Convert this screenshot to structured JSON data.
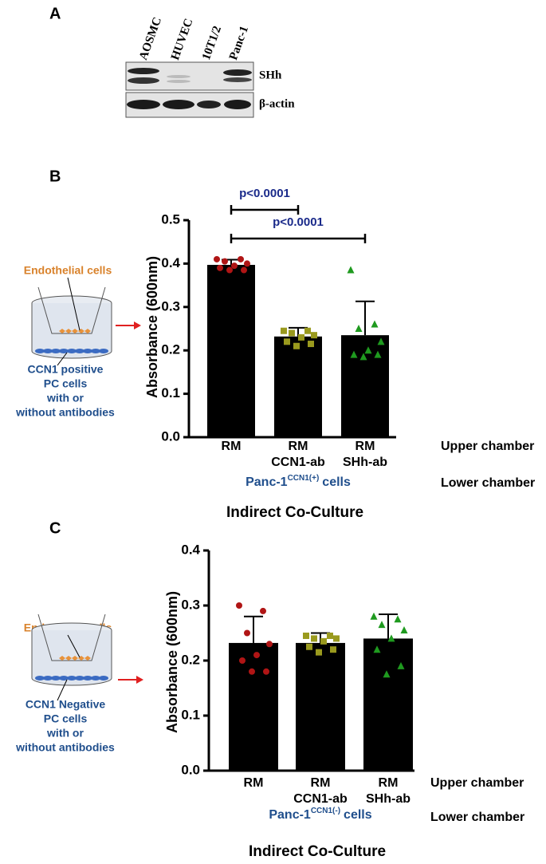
{
  "panel_a": {
    "label": "A",
    "lanes": [
      "AOSMC",
      "HUVEC",
      "10T1/2",
      "Panc-1"
    ],
    "bands": [
      "SHh",
      "β-actin"
    ]
  },
  "chart_data": [
    {
      "type": "bar",
      "panel": "B",
      "ylabel": "Absorbance (600nm)",
      "categories": [
        [
          "RM"
        ],
        [
          "RM",
          "CCN1-ab"
        ],
        [
          "RM",
          "SHh-ab"
        ]
      ],
      "values": [
        0.397,
        0.232,
        0.235
      ],
      "errors": [
        0.012,
        0.02,
        0.078
      ],
      "color": "#000000",
      "points": [
        {
          "color": "#b01515",
          "marker": "circle",
          "values": [
            0.41,
            0.41,
            0.405,
            0.4,
            0.395,
            0.39,
            0.385,
            0.385
          ]
        },
        {
          "color": "#9a9a1e",
          "marker": "square",
          "values": [
            0.245,
            0.245,
            0.24,
            0.235,
            0.23,
            0.22,
            0.215,
            0.21
          ]
        },
        {
          "color": "#1f9a1f",
          "marker": "triangle",
          "values": [
            0.385,
            0.26,
            0.25,
            0.22,
            0.2,
            0.19,
            0.19,
            0.185
          ]
        }
      ],
      "ylim": [
        0,
        0.5
      ],
      "yticks": [
        {
          "value": 0,
          "label": "0.0"
        },
        0.1,
        0.2,
        0.3,
        0.4,
        0.5
      ],
      "annotations": [
        "p<0.0001",
        "p<0.0001"
      ],
      "row_labels": [
        "Upper chamber",
        "Lower chamber"
      ],
      "group_label": {
        "main": "Panc-1",
        "sup": "CCN1(+)",
        "rest": "cells"
      },
      "xlabel": "Indirect Co-Culture",
      "diagram": {
        "top": "Endothelial cells",
        "bottom": [
          "CCN1 positive",
          "PC cells",
          "with or",
          "without antibodies"
        ]
      }
    },
    {
      "type": "bar",
      "panel": "C",
      "ylabel": "Absorbance (600nm)",
      "categories": [
        [
          "RM"
        ],
        [
          "RM",
          "CCN1-ab"
        ],
        [
          "RM",
          "SHh-ab"
        ]
      ],
      "values": [
        0.232,
        0.232,
        0.24
      ],
      "errors": [
        0.048,
        0.018,
        0.044
      ],
      "color": "#000000",
      "points": [
        {
          "color": "#b01515",
          "marker": "circle",
          "values": [
            0.3,
            0.29,
            0.25,
            0.23,
            0.21,
            0.2,
            0.18,
            0.18
          ]
        },
        {
          "color": "#9a9a1e",
          "marker": "square",
          "values": [
            0.245,
            0.245,
            0.24,
            0.24,
            0.235,
            0.225,
            0.22,
            0.215
          ]
        },
        {
          "color": "#1f9a1f",
          "marker": "triangle",
          "values": [
            0.28,
            0.275,
            0.265,
            0.255,
            0.24,
            0.22,
            0.19,
            0.175
          ]
        }
      ],
      "ylim": [
        0,
        0.4
      ],
      "yticks": [
        {
          "value": 0,
          "label": "0.0"
        },
        0.1,
        0.2,
        0.3,
        0.4
      ],
      "annotations": [],
      "row_labels": [
        "Upper chamber",
        "Lower chamber"
      ],
      "group_label": {
        "main": "Panc-1",
        "sup": "CCN1(-)",
        "rest": "cells"
      },
      "xlabel": "Indirect Co-Culture",
      "diagram": {
        "top": "Endothelial cells",
        "bottom": [
          "CCN1 Negative",
          "PC cells",
          "with or",
          "without antibodies"
        ]
      }
    }
  ]
}
